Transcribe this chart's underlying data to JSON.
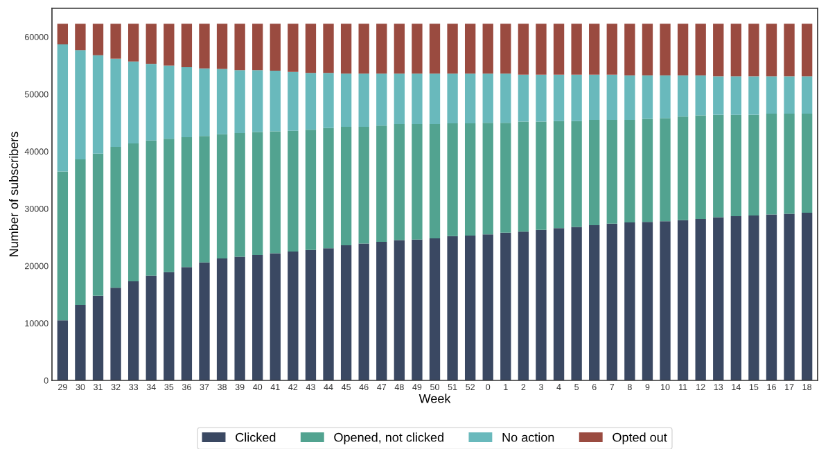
{
  "chart_data": {
    "type": "bar",
    "stacked": true,
    "xlabel": "Week",
    "ylabel": "Number of subscribers",
    "categories": [
      "29",
      "30",
      "31",
      "32",
      "33",
      "34",
      "35",
      "36",
      "37",
      "38",
      "39",
      "40",
      "41",
      "42",
      "43",
      "44",
      "45",
      "46",
      "47",
      "48",
      "49",
      "50",
      "51",
      "52",
      "0",
      "1",
      "2",
      "3",
      "4",
      "5",
      "6",
      "7",
      "8",
      "9",
      "10",
      "11",
      "12",
      "13",
      "14",
      "15",
      "16",
      "17",
      "18"
    ],
    "series": [
      {
        "name": "Clicked",
        "color": "#3a4862",
        "values": [
          10500,
          13200,
          14800,
          16200,
          17300,
          18300,
          18900,
          19800,
          20600,
          21300,
          21600,
          21900,
          22200,
          22500,
          22800,
          23100,
          23600,
          23900,
          24200,
          24500,
          24600,
          24800,
          25200,
          25300,
          25500,
          25800,
          26000,
          26300,
          26600,
          26800,
          27100,
          27400,
          27600,
          27700,
          27800,
          28000,
          28200,
          28500,
          28700,
          28800,
          29000,
          29100,
          29300
        ]
      },
      {
        "name": "Opened, not clicked",
        "color": "#52a390",
        "values": [
          26000,
          25400,
          24800,
          24600,
          24100,
          23600,
          23300,
          22700,
          22100,
          21700,
          21600,
          21500,
          21300,
          21100,
          21000,
          21000,
          20700,
          20400,
          20300,
          20300,
          20200,
          20000,
          19700,
          19600,
          19500,
          19200,
          19200,
          18900,
          18700,
          18500,
          18400,
          18100,
          17900,
          18000,
          18000,
          18100,
          18100,
          17900,
          17700,
          17600,
          17600,
          17500,
          17300
        ]
      },
      {
        "name": "No action",
        "color": "#69b9bc",
        "values": [
          22200,
          19100,
          17200,
          15400,
          14300,
          13400,
          12800,
          12200,
          11800,
          11400,
          11000,
          10800,
          10600,
          10300,
          9900,
          9600,
          9300,
          9300,
          9100,
          8800,
          8800,
          8800,
          8700,
          8700,
          8600,
          8600,
          8200,
          8200,
          8100,
          8100,
          7900,
          7900,
          7800,
          7600,
          7500,
          7200,
          7000,
          6700,
          6700,
          6700,
          6500,
          6500,
          6500
        ]
      },
      {
        "name": "Opted out",
        "color": "#9a4b40",
        "values": [
          3600,
          4600,
          5500,
          6100,
          6600,
          7000,
          7300,
          7600,
          7800,
          7900,
          8100,
          8100,
          8200,
          8400,
          8600,
          8600,
          8700,
          8700,
          8700,
          8700,
          8700,
          8700,
          8700,
          8700,
          8700,
          8700,
          8900,
          8900,
          8900,
          8900,
          8900,
          8900,
          9000,
          9000,
          9000,
          9000,
          9000,
          9200,
          9200,
          9200,
          9200,
          9200,
          9200
        ]
      }
    ],
    "ylim": [
      0,
      65000
    ],
    "yticks": [
      0,
      10000,
      20000,
      30000,
      40000,
      50000,
      60000
    ],
    "grid": false,
    "legend": "bottom"
  }
}
